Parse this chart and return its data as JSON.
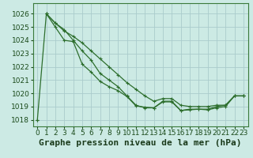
{
  "xlabel": "Graphe pression niveau de la mer (hPa)",
  "background_color": "#cceae4",
  "grid_color": "#aacccc",
  "line_color": "#2d6e2d",
  "xlim": [
    -0.5,
    23.5
  ],
  "ylim": [
    1017.5,
    1026.8
  ],
  "yticks": [
    1018,
    1019,
    1020,
    1021,
    1022,
    1023,
    1024,
    1025,
    1026
  ],
  "xticks": [
    0,
    1,
    2,
    3,
    4,
    5,
    6,
    7,
    8,
    9,
    10,
    11,
    12,
    13,
    14,
    15,
    16,
    17,
    18,
    19,
    20,
    21,
    22,
    23
  ],
  "series": [
    {
      "x": [
        0,
        1,
        2,
        3,
        4,
        5,
        6,
        7,
        8,
        9,
        10,
        11,
        12,
        13,
        14,
        15,
        16,
        17,
        18,
        19,
        20,
        21,
        22,
        23
      ],
      "y": [
        1018.0,
        1026.0,
        1025.3,
        1024.8,
        1024.0,
        1023.2,
        1022.5,
        1021.5,
        1021.0,
        1020.5,
        1019.8,
        1019.1,
        1018.9,
        1018.9,
        1019.4,
        1019.4,
        1018.7,
        1018.8,
        1018.8,
        1018.8,
        1019.0,
        1019.1,
        1019.8,
        1019.8
      ]
    },
    {
      "x": [
        1,
        2,
        3,
        4,
        5,
        6,
        7,
        8,
        9,
        10,
        11,
        12,
        13,
        14,
        15,
        16,
        17,
        18,
        19,
        20,
        21,
        22,
        23
      ],
      "y": [
        1026.0,
        1025.3,
        1024.7,
        1024.3,
        1023.8,
        1023.2,
        1022.6,
        1022.0,
        1021.4,
        1020.8,
        1020.3,
        1019.8,
        1019.4,
        1019.6,
        1019.6,
        1019.1,
        1019.0,
        1019.0,
        1019.0,
        1019.1,
        1019.1,
        1019.8,
        1019.8
      ]
    },
    {
      "x": [
        1,
        2,
        3,
        4,
        5,
        6,
        7,
        8,
        9,
        10,
        11,
        12,
        13,
        14,
        15,
        16,
        17,
        18,
        19,
        20,
        21,
        22,
        23
      ],
      "y": [
        1026.0,
        1025.0,
        1024.0,
        1023.9,
        1022.2,
        1021.6,
        1020.9,
        1020.5,
        1020.2,
        1019.75,
        1019.05,
        1018.95,
        1018.9,
        1019.35,
        1019.35,
        1018.7,
        1018.75,
        1018.8,
        1018.75,
        1018.9,
        1019.0,
        1019.8,
        1019.8
      ]
    }
  ],
  "xlabel_fontsize": 8,
  "tick_fontsize": 6.5
}
